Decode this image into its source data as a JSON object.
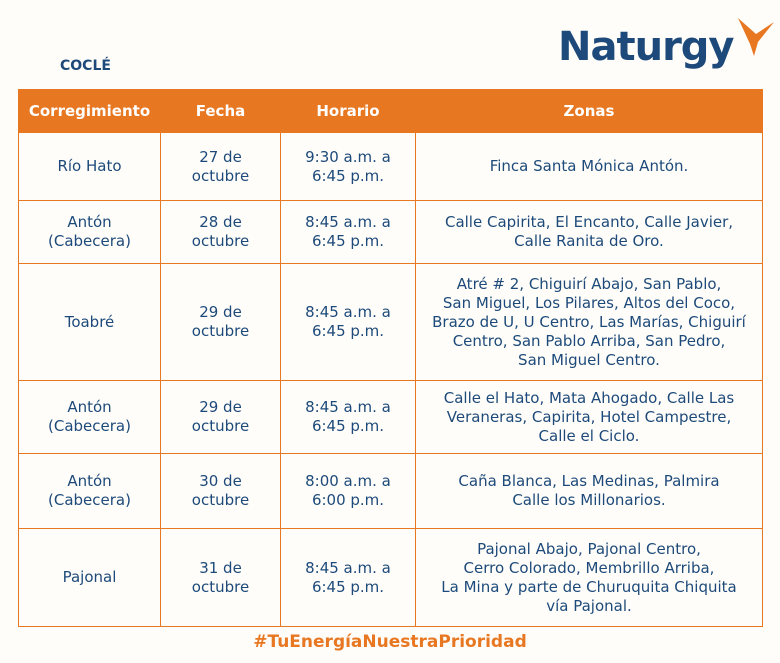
{
  "region": "COCLÉ",
  "logo": {
    "text": "Naturgy",
    "brand_blue": "#1d4a7a",
    "brand_orange": "#e87722"
  },
  "table": {
    "headers": [
      "Corregimiento",
      "Fecha",
      "Horario",
      "Zonas"
    ],
    "rows": [
      [
        "Río Hato",
        "27 de\noctubre",
        "9:30 a.m. a\n6:45 p.m.",
        "Finca Santa Mónica Antón."
      ],
      [
        "Antón\n(Cabecera)",
        "28 de\noctubre",
        "8:45 a.m. a\n6:45 p.m.",
        "Calle Capirita, El Encanto, Calle Javier,\nCalle Ranita de Oro."
      ],
      [
        "Toabré",
        "29 de\noctubre",
        "8:45 a.m. a\n6:45 p.m.",
        "Atré # 2, Chiguirí Abajo, San Pablo,\nSan Miguel, Los Pilares, Altos del Coco,\nBrazo de U, U Centro, Las Marías, Chiguirí\nCentro, San Pablo Arriba, San Pedro,\nSan Miguel Centro."
      ],
      [
        "Antón\n(Cabecera)",
        "29 de\noctubre",
        "8:45 a.m. a\n6:45 p.m.",
        "Calle el Hato, Mata Ahogado, Calle Las\nVeraneras, Capirita, Hotel Campestre,\nCalle el Ciclo."
      ],
      [
        "Antón\n(Cabecera)",
        "30 de\noctubre",
        "8:00 a.m. a\n6:00 p.m.",
        "Caña Blanca, Las Medinas, Palmira\nCalle los Millonarios."
      ],
      [
        "Pajonal",
        "31 de\noctubre",
        "8:45 a.m. a\n6:45 p.m.",
        "Pajonal Abajo, Pajonal Centro,\nCerro Colorado, Membrillo Arriba,\nLa Mina y parte de Churuquita Chiquita\nvía Pajonal."
      ]
    ]
  },
  "hashtag": "#TuEnergíaNuestraPrioridad"
}
